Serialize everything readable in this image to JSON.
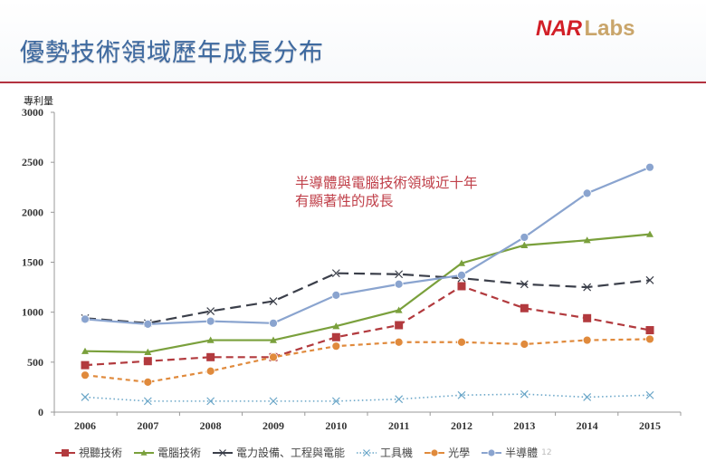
{
  "slide": {
    "title": "優勢技術領域歷年成長分布",
    "logo": {
      "primary": "NAR",
      "secondary": "Labs"
    },
    "page_number": "12",
    "colors": {
      "title": "#3e6aa0",
      "rule": "#b3323f",
      "annotation": "#c0404a"
    }
  },
  "chart_data": {
    "type": "line",
    "title": "",
    "xlabel": "",
    "ylabel": "專利量",
    "x": [
      "2006",
      "2007",
      "2008",
      "2009",
      "2010",
      "2011",
      "2012",
      "2013",
      "2014",
      "2015"
    ],
    "ylim": [
      0,
      3000
    ],
    "yticks": [
      0,
      500,
      1000,
      1500,
      2000,
      2500,
      3000
    ],
    "grid": false,
    "legend_position": "bottom",
    "annotation": [
      "半導體與電腦技術領域近十年",
      "有顯著性的成長"
    ],
    "series": [
      {
        "name": "視聽技術",
        "color": "#b23a3e",
        "marker": "square",
        "dash": "dashed",
        "values": [
          470,
          510,
          550,
          550,
          750,
          870,
          1260,
          1040,
          940,
          820
        ]
      },
      {
        "name": "電腦技術",
        "color": "#7aa03c",
        "marker": "triangle",
        "dash": "solid",
        "values": [
          610,
          600,
          720,
          720,
          860,
          1020,
          1490,
          1670,
          1720,
          1780
        ]
      },
      {
        "name": "電力設備、工程與電能",
        "color": "#3b3f4a",
        "marker": "x",
        "dash": "longdash",
        "values": [
          940,
          890,
          1010,
          1110,
          1390,
          1380,
          1340,
          1280,
          1250,
          1320
        ]
      },
      {
        "name": "工具機",
        "color": "#6aa6c8",
        "marker": "x",
        "dash": "dotted",
        "values": [
          150,
          110,
          110,
          110,
          110,
          130,
          170,
          180,
          150,
          170
        ]
      },
      {
        "name": "光學",
        "color": "#e08a3c",
        "marker": "circle",
        "dash": "shortdash",
        "values": [
          370,
          300,
          410,
          550,
          660,
          700,
          700,
          680,
          720,
          730
        ]
      },
      {
        "name": "半導體",
        "color": "#8aa4cf",
        "marker": "circle",
        "dash": "solid",
        "values": [
          930,
          880,
          910,
          890,
          1170,
          1280,
          1370,
          1750,
          2190,
          2450
        ]
      }
    ]
  }
}
